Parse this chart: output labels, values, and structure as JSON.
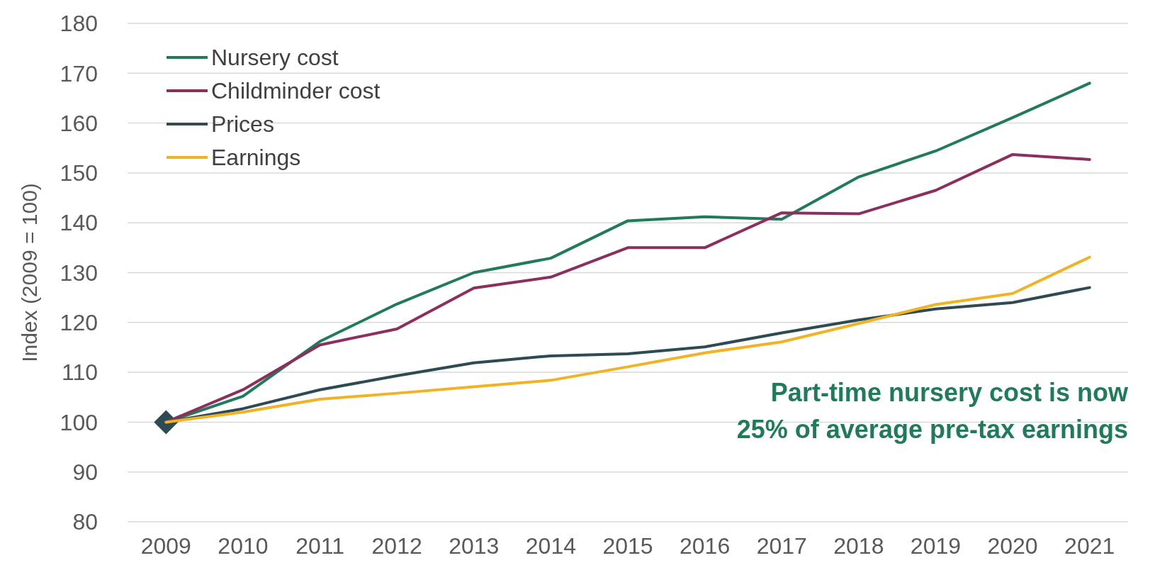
{
  "chart_data": {
    "type": "line",
    "ylabel": "Index (2009 = 100)",
    "categories": [
      "2009",
      "2010",
      "2011",
      "2012",
      "2013",
      "2014",
      "2015",
      "2016",
      "2017",
      "2018",
      "2019",
      "2020",
      "2021"
    ],
    "series": [
      {
        "name": "Nursery cost",
        "color": "#217a5a",
        "values": [
          100,
          105.2,
          116.2,
          123.7,
          130,
          132.9,
          140.4,
          141.2,
          140.7,
          149.2,
          154.4,
          161.1,
          168
        ]
      },
      {
        "name": "Childminder cost",
        "color": "#8b2f5e",
        "values": [
          100,
          106.5,
          115.5,
          118.7,
          126.9,
          129.1,
          135,
          135,
          142,
          141.8,
          146.5,
          153.7,
          152.7
        ]
      },
      {
        "name": "Prices",
        "color": "#2e4a52",
        "values": [
          100,
          102.7,
          106.5,
          109.3,
          111.9,
          113.3,
          113.7,
          115.1,
          117.9,
          120.5,
          122.7,
          124,
          127
        ]
      },
      {
        "name": "Earnings",
        "color": "#f0b323",
        "values": [
          100,
          102,
          104.6,
          105.8,
          107.1,
          108.4,
          111.1,
          113.9,
          116.1,
          119.8,
          123.6,
          125.8,
          133.1
        ]
      },
      {
        "type": "scatter",
        "marker": "diamond",
        "color": "#2e4a52",
        "values": [
          100,
          null,
          null,
          null,
          null,
          null,
          null,
          null,
          null,
          null,
          null,
          null,
          null
        ]
      }
    ],
    "ylim": [
      80,
      180
    ],
    "yticks": [
      80,
      90,
      100,
      110,
      120,
      130,
      140,
      150,
      160,
      170,
      180
    ],
    "grid": "y",
    "legend": "top left",
    "marker": "none",
    "line_style": "solid",
    "annotations": [
      "Part-time nursery cost is now\n25% of average pre-tax earnings"
    ]
  }
}
